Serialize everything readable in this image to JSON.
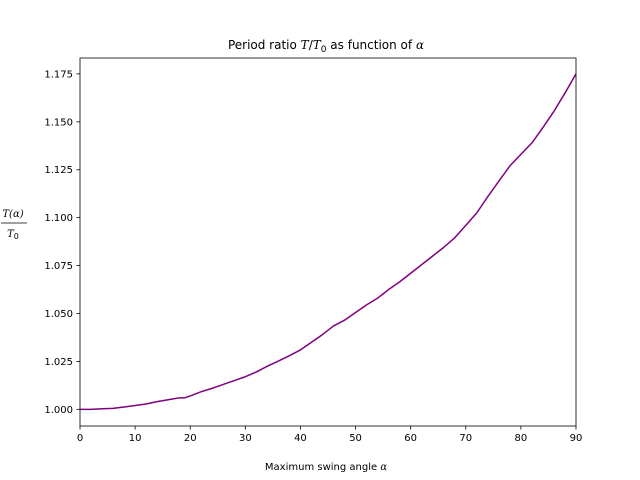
{
  "chart_data": {
    "type": "line",
    "title": {
      "prefix": "Period ratio ",
      "math_T": "T",
      "slash": "/",
      "math_T0": "T",
      "sub0": "0",
      "middle": " as function of ",
      "math_alpha": "α"
    },
    "xlabel": {
      "text": "Maximum swing angle ",
      "math_alpha": "α"
    },
    "ylabel": {
      "numerator": "T(α)",
      "denominator_T": "T",
      "denominator_sub": "0"
    },
    "xlim": [
      0,
      90
    ],
    "ylim": [
      0.9913,
      1.1833
    ],
    "xticks": [
      0,
      10,
      20,
      30,
      40,
      50,
      60,
      70,
      80,
      90
    ],
    "xtick_labels": [
      "0",
      "10",
      "20",
      "30",
      "40",
      "50",
      "60",
      "70",
      "80",
      "90"
    ],
    "yticks": [
      1.0,
      1.025,
      1.05,
      1.075,
      1.1,
      1.125,
      1.15,
      1.175
    ],
    "ytick_labels": [
      "1.000",
      "1.025",
      "1.050",
      "1.075",
      "1.100",
      "1.125",
      "1.150",
      "1.175"
    ],
    "grid": false,
    "series": [
      {
        "color": "#800080",
        "x": [
          0,
          2,
          4,
          6,
          8,
          10,
          12,
          14,
          16,
          18,
          19,
          20,
          22,
          24,
          26,
          28,
          30,
          32,
          34,
          36,
          38,
          40,
          42,
          44,
          46,
          48,
          50,
          52,
          54,
          56,
          58,
          60,
          62,
          64,
          66,
          68,
          70,
          72,
          74,
          76,
          78,
          80,
          82,
          84,
          86,
          88,
          90
        ],
        "y": [
          1.0,
          1.0,
          1.0003,
          1.0005,
          1.0012,
          1.002,
          1.0028,
          1.004,
          1.005,
          1.006,
          1.006,
          1.007,
          1.0092,
          1.011,
          1.013,
          1.015,
          1.017,
          1.0195,
          1.0225,
          1.0252,
          1.028,
          1.031,
          1.035,
          1.039,
          1.0435,
          1.0465,
          1.0505,
          1.0545,
          1.058,
          1.0625,
          1.0665,
          1.071,
          1.0755,
          1.08,
          1.0845,
          1.0895,
          1.096,
          1.1025,
          1.111,
          1.119,
          1.127,
          1.133,
          1.139,
          1.147,
          1.1555,
          1.165,
          1.175
        ]
      }
    ]
  }
}
